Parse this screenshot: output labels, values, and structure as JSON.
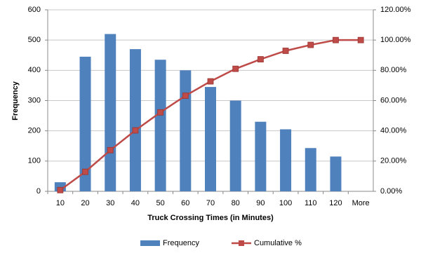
{
  "chart_data": {
    "type": "bar-line",
    "x_label": "Truck Crossing Times (in Minutes)",
    "y_label": "Frequency",
    "categories": [
      "10",
      "20",
      "30",
      "40",
      "50",
      "60",
      "70",
      "80",
      "90",
      "100",
      "110",
      "120",
      "More"
    ],
    "series": [
      {
        "name": "Frequency",
        "type": "bar",
        "color": "#4f81bd",
        "values": [
          30,
          445,
          520,
          470,
          435,
          400,
          345,
          300,
          230,
          205,
          143,
          115,
          0
        ]
      },
      {
        "name": "Cumulative %",
        "type": "line",
        "axis": "y2",
        "color": "#be4b48",
        "values": [
          0.8,
          12.9,
          27.2,
          40.3,
          52.2,
          63.2,
          72.7,
          81.0,
          87.3,
          92.9,
          96.8,
          100,
          100
        ]
      }
    ],
    "ylim": [
      0,
      600
    ],
    "yticks": [
      0,
      100,
      200,
      300,
      400,
      500,
      600
    ],
    "y2lim": [
      0,
      120
    ],
    "y2ticks": [
      {
        "value": 0,
        "label": "0.00%"
      },
      {
        "value": 20,
        "label": "20.00%"
      },
      {
        "value": 40,
        "label": "40.00%"
      },
      {
        "value": 60,
        "label": "60.00%"
      },
      {
        "value": 80,
        "label": "80.00%"
      },
      {
        "value": 100,
        "label": "100.00%"
      },
      {
        "value": 120,
        "label": "120.00%"
      }
    ],
    "grid": true,
    "legend": "bottom"
  }
}
